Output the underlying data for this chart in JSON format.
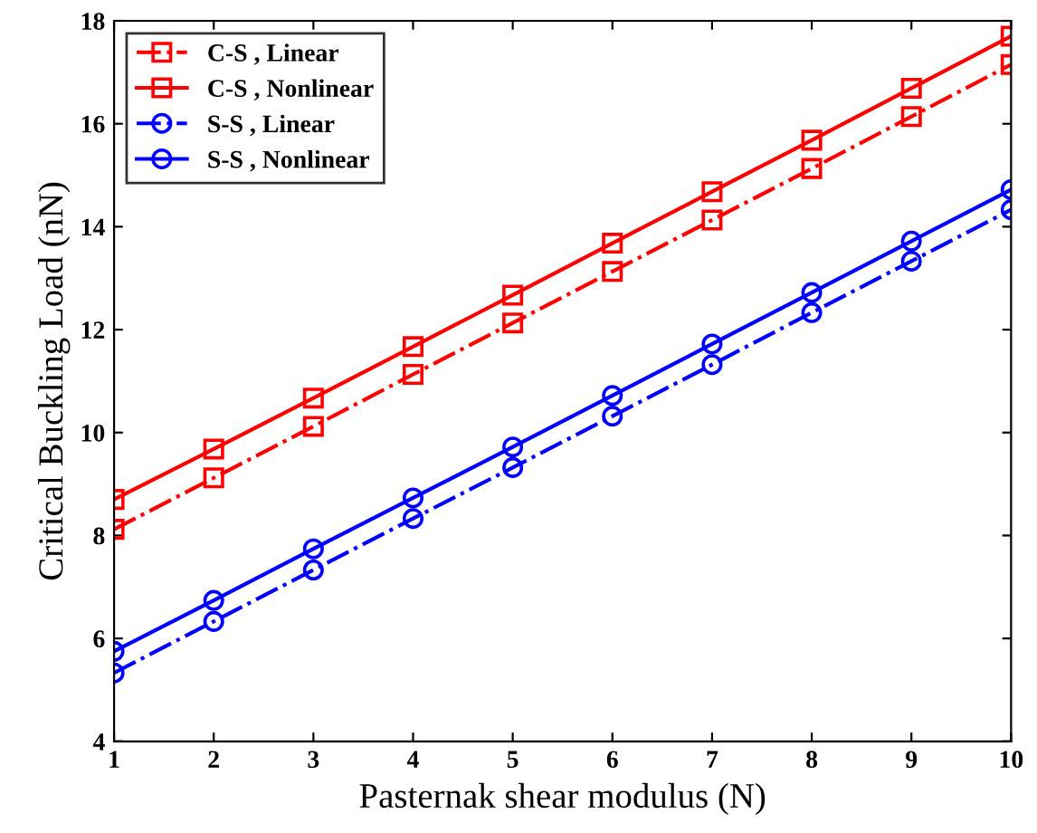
{
  "chart_data": {
    "type": "line",
    "xlabel": "Pasternak shear modulus (N)",
    "ylabel": "Critical Buckling Load (nN)",
    "x": [
      1,
      2,
      3,
      4,
      5,
      6,
      7,
      8,
      9,
      10
    ],
    "xlim": [
      1,
      10
    ],
    "xticks": [
      1,
      2,
      3,
      4,
      5,
      6,
      7,
      8,
      9,
      10
    ],
    "ylim": [
      4,
      18
    ],
    "yticks": [
      4,
      6,
      8,
      10,
      12,
      14,
      16,
      18
    ],
    "grid": false,
    "legend": "top left",
    "series": [
      {
        "name": "C-S , Linear",
        "color": "#ff0000",
        "marker": "square",
        "line_style": "dashdot",
        "values": [
          8.12,
          9.12,
          10.12,
          11.13,
          12.13,
          13.13,
          14.13,
          15.13,
          16.14,
          17.15
        ]
      },
      {
        "name": "C-S , Nonlinear",
        "color": "#ff0000",
        "marker": "square",
        "line_style": "solid",
        "values": [
          8.7,
          9.68,
          10.67,
          11.67,
          12.67,
          13.68,
          14.68,
          15.68,
          16.69,
          17.7
        ]
      },
      {
        "name": "S-S , Linear",
        "color": "#0000ff",
        "marker": "circle",
        "line_style": "dashdot",
        "values": [
          5.33,
          6.33,
          7.33,
          8.33,
          9.32,
          10.32,
          11.32,
          12.33,
          13.33,
          14.33
        ]
      },
      {
        "name": "S-S , Nonlinear",
        "color": "#0000ff",
        "marker": "circle",
        "line_style": "solid",
        "values": [
          5.75,
          6.74,
          7.74,
          8.73,
          9.72,
          10.72,
          11.72,
          12.72,
          13.72,
          14.72
        ]
      }
    ]
  }
}
